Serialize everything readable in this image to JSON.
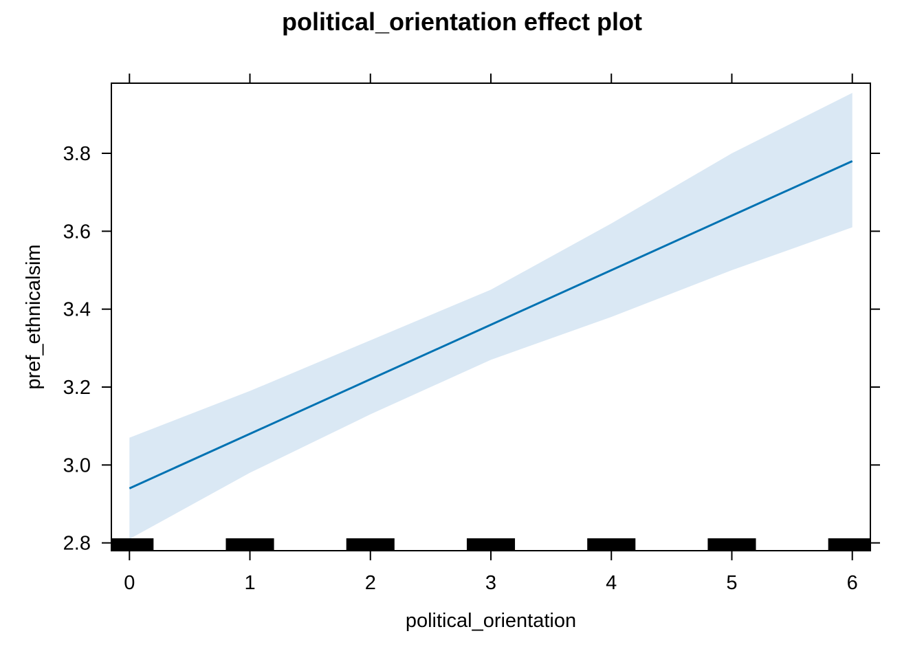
{
  "chart_data": {
    "type": "line",
    "title": "political_orientation effect plot",
    "xlabel": "political_orientation",
    "ylabel": "pref_ethnicalsim",
    "xlim": [
      -0.15,
      6.15
    ],
    "ylim": [
      2.78,
      3.98
    ],
    "x_ticks": [
      0,
      1,
      2,
      3,
      4,
      5,
      6
    ],
    "y_ticks": [
      2.8,
      3.0,
      3.2,
      3.4,
      3.6,
      3.8
    ],
    "x_tick_labels": [
      "0",
      "1",
      "2",
      "3",
      "4",
      "5",
      "6"
    ],
    "y_tick_labels": [
      "2.8",
      "3.0",
      "3.2",
      "3.4",
      "3.6",
      "3.8"
    ],
    "grid": false,
    "series": [
      {
        "x": [
          0,
          1,
          2,
          3,
          4,
          5,
          6
        ],
        "values": [
          2.94,
          3.08,
          3.22,
          3.36,
          3.5,
          3.64,
          3.78
        ],
        "lower": [
          2.81,
          2.98,
          3.13,
          3.27,
          3.38,
          3.5,
          3.61
        ],
        "upper": [
          3.07,
          3.19,
          3.32,
          3.45,
          3.62,
          3.8,
          3.955
        ],
        "color": "#0072b2",
        "band_color": "#dae8f4"
      }
    ],
    "rug": {
      "x": [
        0,
        1,
        2,
        3,
        4,
        5,
        6
      ],
      "color": "#000000"
    }
  }
}
